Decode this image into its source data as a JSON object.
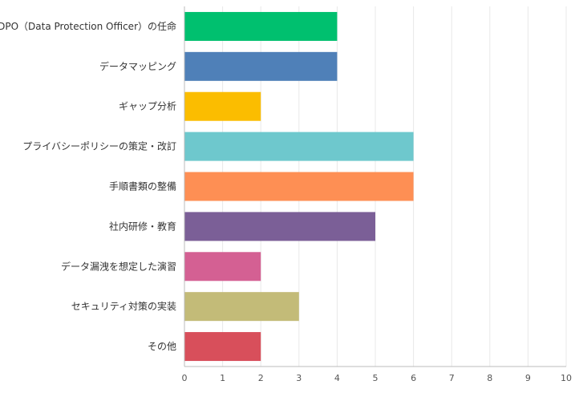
{
  "chart_data": {
    "type": "bar",
    "orientation": "horizontal",
    "categories": [
      "DPO（Data Protection Officer）の任命",
      "データマッピング",
      "ギャップ分析",
      "プライバシーポリシーの策定・改訂",
      "手順書類の整備",
      "社内研修・教育",
      "データ漏洩を想定した演習",
      "セキュリティ対策の実装",
      "その他"
    ],
    "values": [
      4,
      4,
      2,
      6,
      6,
      5,
      2,
      3,
      2
    ],
    "colors": [
      "#00c06f",
      "#4f80b8",
      "#fbbd00",
      "#6ec8cd",
      "#fe8f54",
      "#7b5f97",
      "#d46093",
      "#c3bb78",
      "#d84f5b"
    ],
    "xlim": [
      0,
      10
    ],
    "x_ticks": [
      0,
      1,
      2,
      3,
      4,
      5,
      6,
      7,
      8,
      9,
      10
    ],
    "grid": true,
    "legend": "none"
  }
}
